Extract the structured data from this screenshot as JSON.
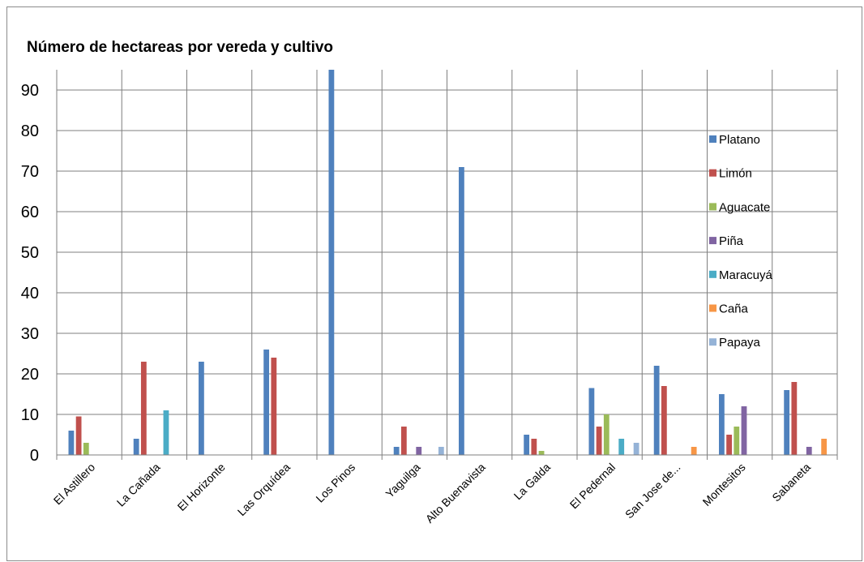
{
  "chart_data": {
    "type": "bar",
    "title": "Número de hectareas por vereda y cultivo",
    "xlabel": "",
    "ylabel": "",
    "ylim": [
      0,
      95
    ],
    "yticks": [
      0,
      10,
      20,
      30,
      40,
      50,
      60,
      70,
      80,
      90
    ],
    "grid": true,
    "legend_position": "right",
    "categories": [
      "El Astillero",
      "La Cañada",
      "El Horizonte",
      "Las Orquídea",
      "Los Pinos",
      "Yaguilga",
      "Alto Buenavista",
      "La Galda",
      "El Pedernal",
      "San Jose de...",
      "Montesitos",
      "Sabaneta"
    ],
    "series": [
      {
        "name": "Platano",
        "color": "#4f81bd",
        "values": [
          6,
          4,
          23,
          26,
          95,
          2,
          71,
          5,
          16.5,
          22,
          15,
          16
        ]
      },
      {
        "name": "Limón",
        "color": "#c0504d",
        "values": [
          9.5,
          23,
          0,
          24,
          0,
          7,
          0,
          4,
          7,
          17,
          5,
          18
        ]
      },
      {
        "name": "Aguacate",
        "color": "#9bbb59",
        "values": [
          3,
          0,
          0,
          0,
          0,
          0,
          0,
          1,
          10,
          0,
          7,
          0
        ]
      },
      {
        "name": "Piña",
        "color": "#8064a2",
        "values": [
          0,
          0,
          0,
          0,
          0,
          2,
          0,
          0,
          0,
          0,
          12,
          2
        ]
      },
      {
        "name": "Maracuyá",
        "color": "#4bacc6",
        "values": [
          0,
          11,
          0,
          0,
          0,
          0,
          0,
          0,
          4,
          0,
          0,
          0
        ]
      },
      {
        "name": "Caña",
        "color": "#f79646",
        "values": [
          0,
          0,
          0,
          0,
          0,
          0,
          0,
          0,
          0,
          2,
          0,
          4
        ]
      },
      {
        "name": "Papaya",
        "color": "#95b3d7",
        "values": [
          0,
          0,
          0,
          0,
          0,
          2,
          0,
          0,
          3,
          0,
          0,
          0
        ]
      }
    ]
  }
}
